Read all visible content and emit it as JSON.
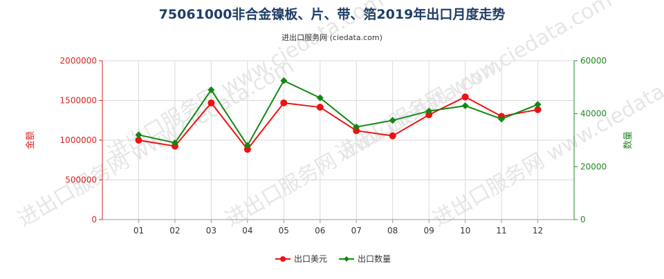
{
  "chart_data": {
    "type": "line",
    "title": "75061000非合金镍板、片、带、箔2019年出口月度走势",
    "subtitle": "进出口服务网 (ciedata.com)",
    "watermark": "进出口服务网 www.ciedata.com",
    "categories": [
      "01",
      "02",
      "03",
      "04",
      "05",
      "06",
      "07",
      "08",
      "09",
      "10",
      "11",
      "12"
    ],
    "y_left": {
      "label": "金额",
      "min": 0,
      "max": 2000000,
      "ticks": [
        "0",
        "500000",
        "1000000",
        "1500000",
        "2000000"
      ],
      "color": "#dd2222"
    },
    "y_right": {
      "label": "数量",
      "min": 0,
      "max": 60000,
      "ticks": [
        "0",
        "20000",
        "40000",
        "60000"
      ],
      "color": "#228822"
    },
    "series": [
      {
        "name": "出口美元",
        "axis": "left",
        "color": "#ee1111",
        "values": [
          1000000,
          925000,
          1470000,
          885000,
          1470000,
          1415000,
          1120000,
          1055000,
          1320000,
          1545000,
          1300000,
          1385000
        ]
      },
      {
        "name": "出口数量",
        "axis": "right",
        "color": "#118811",
        "values": [
          32000,
          29000,
          49000,
          28000,
          52500,
          46000,
          35000,
          37500,
          41000,
          43000,
          38000,
          43500
        ]
      }
    ],
    "grid": true,
    "legend": "bottom"
  }
}
